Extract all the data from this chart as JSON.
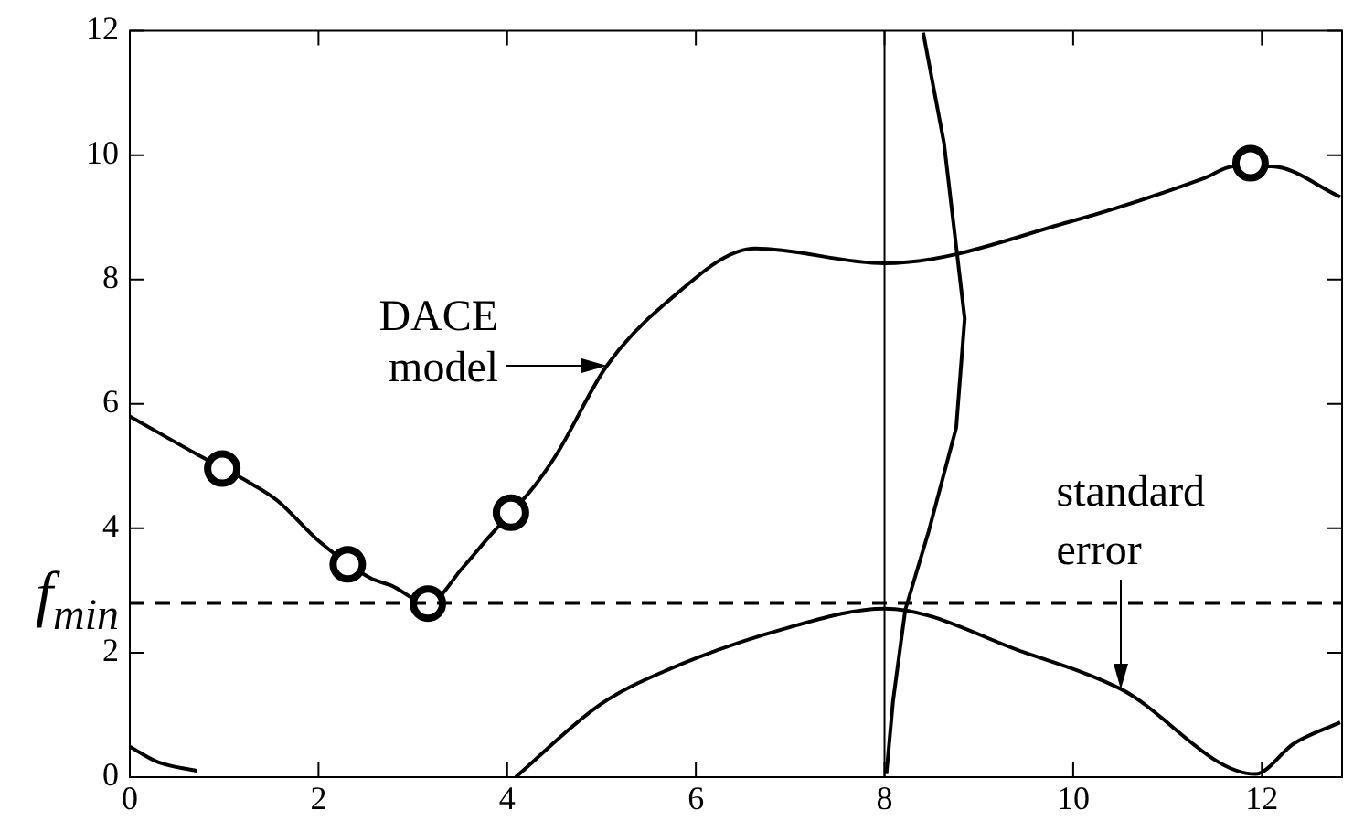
{
  "chart_data": {
    "type": "line",
    "xlim": [
      0,
      12.85
    ],
    "ylim": [
      0,
      12
    ],
    "xticks": [
      0,
      2,
      4,
      6,
      8,
      10,
      12
    ],
    "yticks": [
      0,
      2,
      4,
      6,
      8,
      10,
      12
    ],
    "grid": false,
    "legend": false,
    "series": [
      {
        "type": "line",
        "color": "#000000",
        "x": [
          0,
          0.7,
          1.25,
          1.56,
          2.0,
          2.55,
          2.77,
          3.16,
          3.53,
          3.8,
          4.3,
          4.54,
          5.05,
          5.68,
          6.63,
          8.0,
          9.99,
          11.39,
          11.7,
          12.1,
          12.83
        ],
        "values": [
          5.8,
          5.2,
          4.75,
          4.45,
          3.8,
          3.2,
          3.08,
          2.79,
          3.37,
          3.85,
          4.7,
          5.23,
          6.6,
          7.62,
          8.5,
          8.26,
          8.94,
          9.63,
          9.82,
          9.82,
          9.33
        ]
      },
      {
        "type": "line",
        "color": "#000000",
        "x": [
          0,
          0.3,
          0.71,
          2.4,
          4.09,
          4.99,
          5.68,
          6.95,
          8.0,
          9.49,
          10.5,
          11.93,
          12.34,
          12.83
        ],
        "values": [
          0.49,
          0.24,
          0.1,
          null,
          0,
          1.17,
          1.71,
          2.39,
          2.71,
          2.0,
          1.42,
          0.05,
          0.54,
          0.88
        ]
      },
      {
        "type": "line",
        "color": "#000000",
        "x": [
          8.02,
          8.09,
          8.22,
          8.47,
          8.76,
          8.85,
          8.63,
          8.41
        ],
        "values": [
          0.05,
          1.22,
          2.69,
          3.96,
          5.62,
          7.37,
          10.2,
          11.97
        ]
      },
      {
        "type": "scatter",
        "color": "#000000",
        "marker": "circle",
        "x": [
          0.98,
          2.31,
          3.16,
          4.04,
          11.88
        ],
        "values": [
          4.96,
          3.42,
          2.79,
          4.25,
          9.87
        ]
      }
    ],
    "ref_lines": [
      {
        "axis": "x",
        "value": 8
      },
      {
        "axis": "y",
        "value": 2.8,
        "label": "f$_{min}$",
        "line_style": "dashed"
      }
    ],
    "annotations": [
      {
        "text": "DACE model",
        "x": 5.05,
        "y": 6.6
      },
      {
        "text": "standard error",
        "x": 10.5,
        "y": 1.42
      }
    ]
  }
}
